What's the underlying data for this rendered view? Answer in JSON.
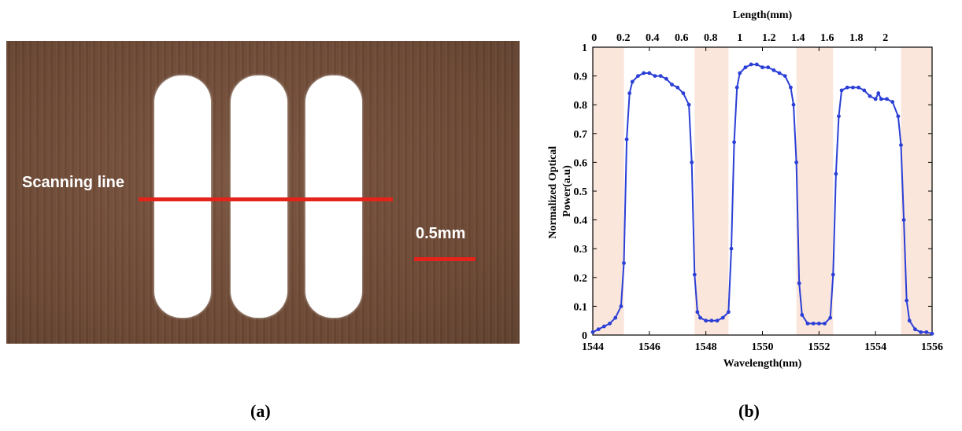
{
  "panel_a": {
    "scan_label": "Scanning line",
    "scale_label": "0.5mm",
    "caption": "(a)"
  },
  "panel_b": {
    "caption": "(b)"
  },
  "colors": {
    "line": "#2b3fd6",
    "band": "#fbe6dc",
    "red_marker": "#e4231b"
  },
  "chart_data": {
    "type": "line",
    "xlabel": "Wavelength(nm)",
    "ylabel": "Normalized Optical Power(a.u)",
    "ylabel_lines": [
      "Normalized Optical",
      "Power(a.u)"
    ],
    "x2label": "Length(mm)",
    "xlim": [
      1544,
      1556
    ],
    "ylim": [
      0,
      1
    ],
    "x_ticks": [
      1544,
      1546,
      1548,
      1550,
      1552,
      1554,
      1556
    ],
    "y_ticks": [
      0,
      0.1,
      0.2,
      0.3,
      0.4,
      0.5,
      0.6,
      0.7,
      0.8,
      0.9,
      1
    ],
    "x_tick_labels": [
      "1544",
      "1546",
      "1548",
      "1550",
      "1552",
      "1554",
      "1556"
    ],
    "y_tick_labels": [
      "0",
      "0.1",
      "0.2",
      "0.3",
      "0.4",
      "0.5",
      "0.6",
      "0.7",
      "0.8",
      "0.9",
      "1"
    ],
    "x2_tick_labels": [
      "0",
      "0.2",
      "0.4",
      "0.6",
      "0.8",
      "1",
      "1.2",
      "1.4",
      "1.6",
      "1.8",
      "2"
    ],
    "x2_tick_positions": [
      1544.05,
      1545.08,
      1546.11,
      1547.14,
      1548.17,
      1549.2,
      1550.23,
      1551.26,
      1552.29,
      1553.32,
      1554.35
    ],
    "grid": false,
    "shaded_bands": [
      [
        1544,
        1545.1
      ],
      [
        1547.6,
        1548.8
      ],
      [
        1551.2,
        1552.5
      ],
      [
        1554.9,
        1556
      ]
    ],
    "series": [
      {
        "x": [
          1544,
          1544.2,
          1544.4,
          1544.6,
          1544.8,
          1545,
          1545.1,
          1545.2,
          1545.3,
          1545.4,
          1545.6,
          1545.8,
          1546,
          1546.2,
          1546.4,
          1546.6,
          1546.8,
          1547,
          1547.2,
          1547.4,
          1547.5,
          1547.6,
          1547.7,
          1547.8,
          1548,
          1548.2,
          1548.4,
          1548.6,
          1548.8,
          1548.9,
          1549,
          1549.1,
          1549.2,
          1549.4,
          1549.6,
          1549.8,
          1550,
          1550.2,
          1550.4,
          1550.6,
          1550.8,
          1551,
          1551.1,
          1551.2,
          1551.3,
          1551.4,
          1551.6,
          1551.8,
          1552,
          1552.2,
          1552.4,
          1552.5,
          1552.6,
          1552.7,
          1552.8,
          1553,
          1553.2,
          1553.4,
          1553.6,
          1553.8,
          1554,
          1554.1,
          1554.2,
          1554.4,
          1554.6,
          1554.8,
          1554.9,
          1555,
          1555.1,
          1555.2,
          1555.4,
          1555.6,
          1555.8,
          1556
        ],
        "y": [
          0.01,
          0.02,
          0.03,
          0.04,
          0.06,
          0.1,
          0.25,
          0.68,
          0.84,
          0.88,
          0.9,
          0.91,
          0.91,
          0.9,
          0.9,
          0.89,
          0.87,
          0.86,
          0.84,
          0.8,
          0.6,
          0.21,
          0.08,
          0.06,
          0.05,
          0.05,
          0.05,
          0.06,
          0.08,
          0.3,
          0.67,
          0.86,
          0.91,
          0.93,
          0.94,
          0.94,
          0.93,
          0.93,
          0.92,
          0.91,
          0.9,
          0.86,
          0.8,
          0.6,
          0.18,
          0.07,
          0.04,
          0.04,
          0.04,
          0.04,
          0.06,
          0.21,
          0.56,
          0.76,
          0.85,
          0.86,
          0.86,
          0.86,
          0.85,
          0.83,
          0.82,
          0.84,
          0.82,
          0.82,
          0.81,
          0.76,
          0.66,
          0.4,
          0.12,
          0.05,
          0.02,
          0.01,
          0.01,
          0.005
        ]
      }
    ]
  }
}
